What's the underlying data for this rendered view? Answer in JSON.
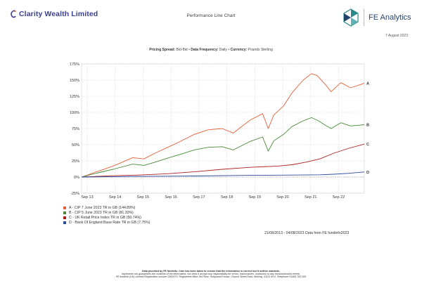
{
  "header": {
    "company": "Clarity Wealth Limited",
    "title": "Performance Line Chart",
    "brand": "FE Analytics",
    "date": "7 August 2023"
  },
  "params": {
    "pricing_label": "Pricing Spread:",
    "pricing_value": "Bid-Bid",
    "frequency_label": "Data Frequency:",
    "frequency_value": "Daily",
    "currency_label": "Currency:",
    "currency_value": "Pounds Sterling"
  },
  "colors": {
    "accent_blue": "#3b3f8f",
    "brand_teal": "#2a8a8a",
    "brand_navy": "#23456b"
  },
  "chart_data": {
    "type": "line",
    "ylim": [
      -25,
      175
    ],
    "yticks": [
      -25,
      0,
      25,
      50,
      75,
      100,
      125,
      150,
      175
    ],
    "ytick_labels": [
      "-25%",
      "0%",
      "25%",
      "50%",
      "75%",
      "100%",
      "125%",
      "150%",
      "175%"
    ],
    "xlim": [
      2013.47,
      2023.59
    ],
    "xticks": [
      2013.67,
      2014.67,
      2015.67,
      2016.67,
      2017.67,
      2018.67,
      2019.67,
      2020.67,
      2021.67,
      2022.67
    ],
    "xtick_labels": [
      "Sep 13",
      "Sep 14",
      "Sep 15",
      "Sep 16",
      "Sep 17",
      "Sep 18",
      "Sep 19",
      "Sep 20",
      "Sep 21",
      "Sep 22"
    ],
    "grid": true,
    "series": [
      {
        "name": "A - CIP 7 June 2023 TR in GB (144.89%)",
        "label": "A",
        "color": "#e8603a",
        "x": [
          2013.47,
          2014.0,
          2014.6,
          2015.3,
          2015.7,
          2016.1,
          2016.6,
          2017.0,
          2017.5,
          2018.0,
          2018.5,
          2018.9,
          2019.5,
          2019.95,
          2020.15,
          2020.35,
          2020.7,
          2021.0,
          2021.4,
          2021.7,
          2021.9,
          2022.2,
          2022.4,
          2022.75,
          2023.1,
          2023.59
        ],
        "values": [
          0,
          8,
          17,
          30,
          28,
          37,
          47,
          55,
          66,
          73,
          75,
          68,
          88,
          98,
          75,
          96,
          110,
          130,
          150,
          160,
          157,
          143,
          132,
          146,
          138,
          145
        ]
      },
      {
        "name": "B - CIP 5 June 2023 TR in GB (81.30%)",
        "label": "B",
        "color": "#4a8a3a",
        "x": [
          2013.47,
          2014.0,
          2014.6,
          2015.3,
          2015.7,
          2016.1,
          2016.6,
          2017.0,
          2017.5,
          2018.0,
          2018.5,
          2018.9,
          2019.5,
          2019.95,
          2020.15,
          2020.35,
          2020.7,
          2021.0,
          2021.4,
          2021.7,
          2021.9,
          2022.2,
          2022.4,
          2022.75,
          2023.1,
          2023.59
        ],
        "values": [
          0,
          6,
          12,
          20,
          18,
          23,
          30,
          35,
          42,
          46,
          47,
          42,
          55,
          62,
          40,
          56,
          66,
          78,
          87,
          92,
          88,
          80,
          75,
          84,
          79,
          81
        ]
      },
      {
        "name": "C - UK Retail Price Index TR in GB (50.74%)",
        "label": "C",
        "color": "#b02020",
        "x": [
          2013.47,
          2014.5,
          2015.5,
          2016.5,
          2017.5,
          2018.5,
          2019.5,
          2020.5,
          2021.0,
          2021.5,
          2022.0,
          2022.5,
          2023.0,
          2023.59
        ],
        "values": [
          0,
          2,
          3,
          5,
          8,
          12,
          15,
          17,
          19,
          23,
          28,
          37,
          44,
          51
        ]
      },
      {
        "name": "D - Bank Of England Base Rate TR in GB (7.75%)",
        "label": "D",
        "color": "#2a4aa0",
        "x": [
          2013.47,
          2015.5,
          2017.5,
          2019.5,
          2021.0,
          2022.0,
          2022.5,
          2023.0,
          2023.59
        ],
        "values": [
          0,
          1,
          1.6,
          2.6,
          3.0,
          3.5,
          4.3,
          5.6,
          7.8
        ]
      }
    ]
  },
  "legend_items": [
    {
      "text": "A - CIP 7 June 2023 TR in GB (144.89%)",
      "color": "#e8603a"
    },
    {
      "text": "B - CIP 5 June 2023 TR in GB (81.30%)",
      "color": "#4a8a3a"
    },
    {
      "text": "C - UK Retail Price Index TR in GB (50.74%)",
      "color": "#b02020"
    },
    {
      "text": "D - Bank Of England Base Rate TR in GB (7.75%)",
      "color": "#2a4aa0"
    }
  ],
  "date_range": "21/08/2013 - 04/08/2023 Data from FE fundinfo2023",
  "footer": {
    "line1": "Data provided by FE fundinfo. Care has been taken to ensure that the information is correct but it neither warrants,",
    "line2": "represents nor guarantees the contents of the information, nor does it accept any responsibility for errors, inaccuracies, omissions or any inconsistencies herein.",
    "line3": "FE fundinfo (UK) Limited Registration number 2900373. Registered office 3rd Floor, Hollywood House, Church Street East, Woking, GU21 6HJ. Telephone 01483 783 000"
  }
}
